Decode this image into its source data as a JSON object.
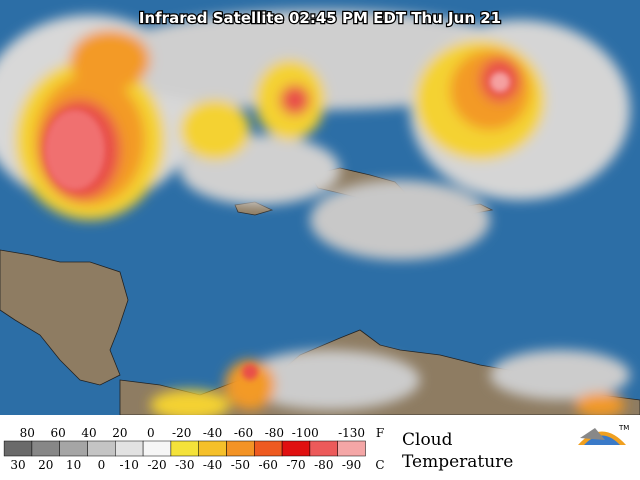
{
  "title": "Infrared Satellite 02:45 PM EDT Thu Jun 21",
  "legend": {
    "fahrenheit": {
      "labels": [
        "80",
        "60",
        "40",
        "20",
        "0",
        "-20",
        "-40",
        "-60",
        "-80",
        "-100",
        "-130"
      ],
      "unit": "F"
    },
    "celsius": {
      "labels": [
        "30",
        "20",
        "10",
        "0",
        "-10",
        "-20",
        "-30",
        "-40",
        "-50",
        "-60",
        "-70",
        "-80",
        "-90"
      ],
      "unit": "C"
    },
    "caption": [
      "Cloud",
      "Temperature"
    ],
    "logo_mark": "TM"
  }
}
